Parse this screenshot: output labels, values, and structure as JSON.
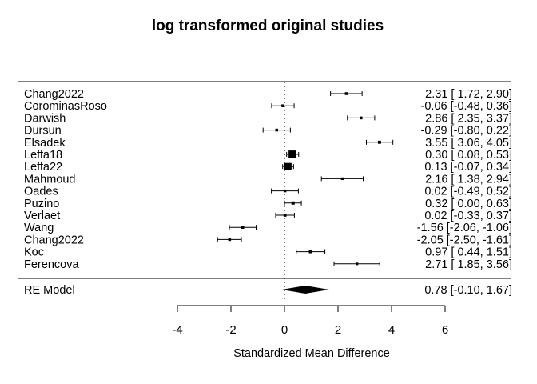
{
  "chart_data": {
    "type": "forest",
    "title": "log transformed original studies",
    "xlabel": "Standardized Mean Difference",
    "xlim": [
      -4,
      6
    ],
    "xticks": [
      -4,
      -2,
      0,
      2,
      4,
      6
    ],
    "xtick_labels": [
      "-4",
      "-2",
      "0",
      "2",
      "4",
      "6"
    ],
    "reference_line": 0,
    "studies": [
      {
        "label": "Chang2022",
        "estimate": 2.31,
        "lower": 1.72,
        "upper": 2.9,
        "weight": 1.6,
        "ci_text": "2.31 [ 1.72,  2.90]"
      },
      {
        "label": "CorominasRoso",
        "estimate": -0.06,
        "lower": -0.48,
        "upper": 0.36,
        "weight": 1.6,
        "ci_text": "-0.06 [-0.48,  0.36]"
      },
      {
        "label": "Darwish",
        "estimate": 2.86,
        "lower": 2.35,
        "upper": 3.37,
        "weight": 1.6,
        "ci_text": "2.86 [ 2.35,  3.37]"
      },
      {
        "label": "Dursun",
        "estimate": -0.29,
        "lower": -0.8,
        "upper": 0.22,
        "weight": 1.6,
        "ci_text": "-0.29 [-0.80,  0.22]"
      },
      {
        "label": "Elsadek",
        "estimate": 3.55,
        "lower": 3.06,
        "upper": 4.05,
        "weight": 1.8,
        "ci_text": "3.55 [ 3.06,  4.05]"
      },
      {
        "label": "Leffa18",
        "estimate": 0.3,
        "lower": 0.08,
        "upper": 0.53,
        "weight": 5.5,
        "ci_text": "0.30 [ 0.08,  0.53]"
      },
      {
        "label": "Leffa22",
        "estimate": 0.13,
        "lower": -0.07,
        "upper": 0.34,
        "weight": 5.0,
        "ci_text": "0.13 [-0.07,  0.34]"
      },
      {
        "label": "Mahmoud",
        "estimate": 2.16,
        "lower": 1.38,
        "upper": 2.94,
        "weight": 1.4,
        "ci_text": "2.16 [ 1.38,  2.94]"
      },
      {
        "label": "Oades",
        "estimate": 0.02,
        "lower": -0.49,
        "upper": 0.52,
        "weight": 1.5,
        "ci_text": "0.02 [-0.49,  0.52]"
      },
      {
        "label": "Puzino",
        "estimate": 0.32,
        "lower": 0.0,
        "upper": 0.63,
        "weight": 1.9,
        "ci_text": "0.32 [ 0.00,  0.63]"
      },
      {
        "label": "Verlaet",
        "estimate": 0.02,
        "lower": -0.33,
        "upper": 0.37,
        "weight": 1.7,
        "ci_text": "0.02 [-0.33,  0.37]"
      },
      {
        "label": "Wang",
        "estimate": -1.56,
        "lower": -2.06,
        "upper": -1.06,
        "weight": 1.6,
        "ci_text": "-1.56 [-2.06, -1.06]"
      },
      {
        "label": "Chang2022",
        "estimate": -2.05,
        "lower": -2.5,
        "upper": -1.61,
        "weight": 1.6,
        "ci_text": "-2.05 [-2.50, -1.61]"
      },
      {
        "label": "Koc",
        "estimate": 0.97,
        "lower": 0.44,
        "upper": 1.51,
        "weight": 1.8,
        "ci_text": "0.97 [ 0.44,  1.51]"
      },
      {
        "label": "Ferencova",
        "estimate": 2.71,
        "lower": 1.85,
        "upper": 3.56,
        "weight": 1.3,
        "ci_text": "2.71 [ 1.85,  3.56]"
      }
    ],
    "summary": {
      "label": "RE Model",
      "estimate": 0.78,
      "lower": -0.1,
      "upper": 1.67,
      "ci_text": "0.78 [-0.10,  1.67]"
    }
  }
}
